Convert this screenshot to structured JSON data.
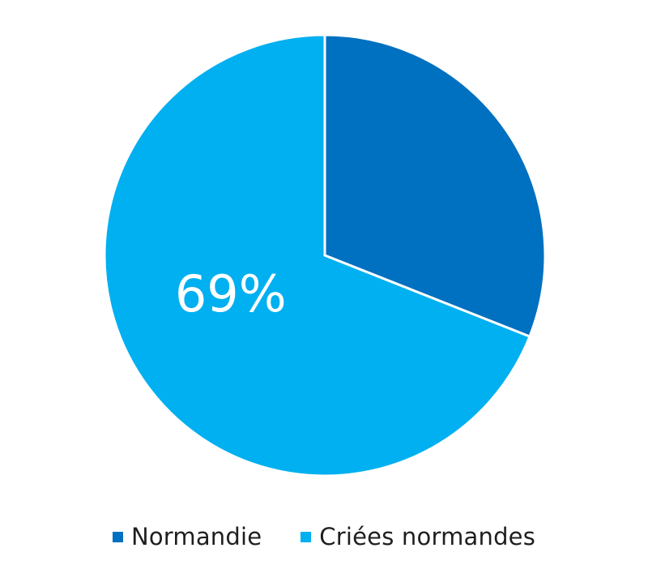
{
  "chart_data": {
    "type": "pie",
    "slices": [
      {
        "label": "Normandie",
        "value": 31,
        "color": "#0070c0",
        "data_label": ""
      },
      {
        "label": "Criées normandes",
        "value": 69,
        "color": "#00b0f0",
        "data_label": "69%"
      }
    ],
    "legend_position": "bottom",
    "start_angle": "12 o'clock",
    "direction": "clockwise"
  },
  "legend": {
    "items": [
      {
        "label": "Normandie",
        "color": "#0070c0"
      },
      {
        "label": "Criées normandes",
        "color": "#00b0f0"
      }
    ]
  }
}
